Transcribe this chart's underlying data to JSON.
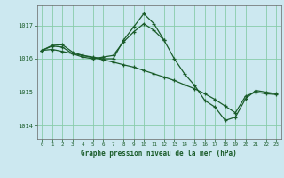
{
  "title": "Graphe pression niveau de la mer (hPa)",
  "background_color": "#cce8f0",
  "grid_color": "#88ccaa",
  "line_color": "#1a5c2a",
  "xlim": [
    -0.5,
    23.5
  ],
  "ylim": [
    1013.6,
    1017.6
  ],
  "yticks": [
    1014,
    1015,
    1016,
    1017
  ],
  "xticks": [
    0,
    1,
    2,
    3,
    4,
    5,
    6,
    7,
    8,
    9,
    10,
    11,
    12,
    13,
    14,
    15,
    16,
    17,
    18,
    19,
    20,
    21,
    22,
    23
  ],
  "series1": {
    "x": [
      0,
      1,
      2,
      3,
      4,
      5,
      6,
      7,
      8,
      9,
      10,
      11,
      12,
      13,
      14,
      15,
      16,
      17,
      18,
      19,
      20,
      21,
      22,
      23
    ],
    "y": [
      1016.25,
      1016.4,
      1016.42,
      1016.2,
      1016.1,
      1016.05,
      1016.0,
      1016.0,
      1016.55,
      1016.95,
      1017.35,
      1017.05,
      1016.55,
      1016.0,
      1015.55,
      1015.2,
      1014.75,
      1014.55,
      1014.15,
      1014.25,
      1014.8,
      1015.05,
      1015.0,
      1014.95
    ]
  },
  "series2": {
    "x": [
      0,
      1,
      2,
      3,
      4,
      5,
      6,
      7,
      8,
      9,
      10,
      11,
      12,
      13,
      14,
      15,
      16,
      17,
      18,
      19,
      20,
      21,
      22,
      23
    ],
    "y": [
      1016.25,
      1016.28,
      1016.22,
      1016.15,
      1016.1,
      1016.03,
      1015.97,
      1015.9,
      1015.82,
      1015.75,
      1015.65,
      1015.55,
      1015.45,
      1015.35,
      1015.22,
      1015.1,
      1014.95,
      1014.78,
      1014.58,
      1014.38,
      1014.88,
      1015.0,
      1014.95,
      1014.93
    ]
  },
  "series3": {
    "x": [
      0,
      1,
      2,
      3,
      4,
      5,
      6,
      7,
      8,
      9,
      10,
      11,
      12
    ],
    "y": [
      1016.25,
      1016.38,
      1016.35,
      1016.15,
      1016.05,
      1016.0,
      1016.05,
      1016.1,
      1016.5,
      1016.8,
      1017.05,
      1016.85,
      1016.55
    ]
  }
}
